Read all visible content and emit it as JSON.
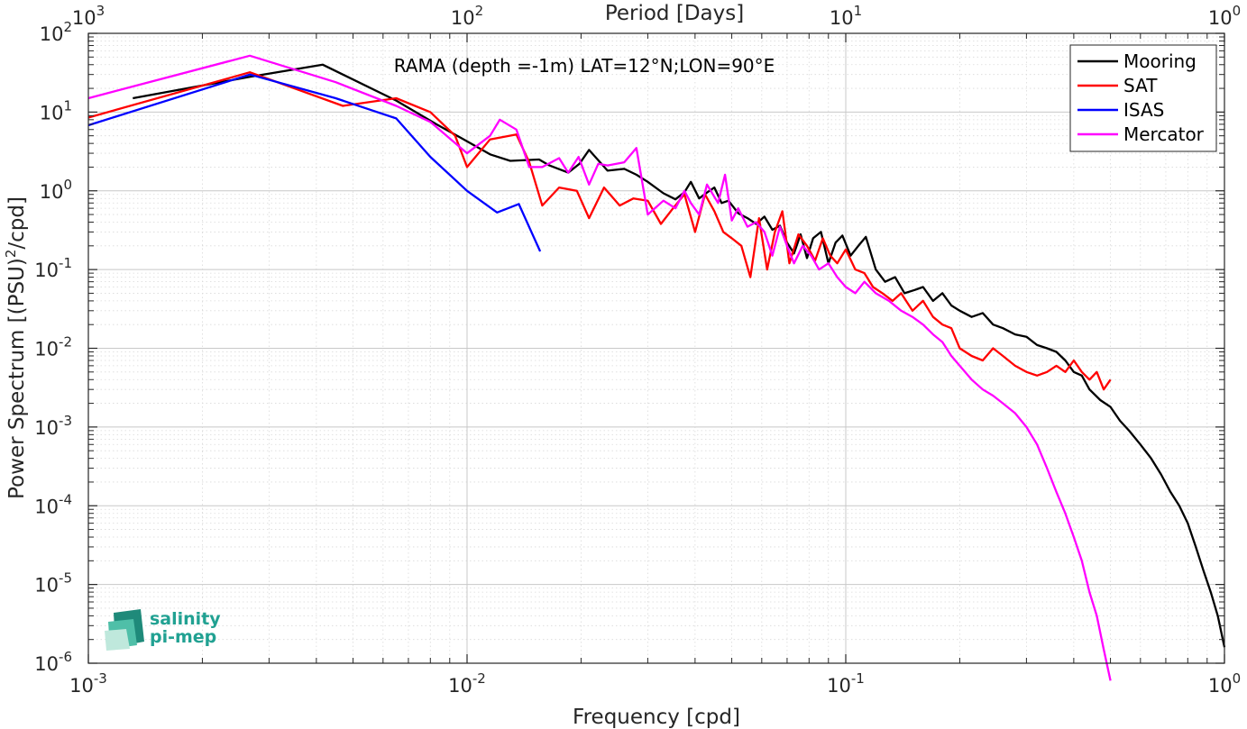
{
  "chart_data": {
    "type": "line",
    "title": "RAMA (depth =-1m) LAT=12°N;LON=90°E",
    "xlabel": "Frequency [cpd]",
    "ylabel": "Power Spectrum [(PSU)²/cpd]",
    "top_xlabel": "Period [Days]",
    "x_scale": "log",
    "y_scale": "log",
    "xlim": [
      0.001,
      1
    ],
    "ylim": [
      1e-06,
      100
    ],
    "grid": true,
    "legend_position": "top-right",
    "x_ticks": [
      {
        "base": "10",
        "exp": "-3",
        "value": 0.001
      },
      {
        "base": "10",
        "exp": "-2",
        "value": 0.01
      },
      {
        "base": "10",
        "exp": "-1",
        "value": 0.1
      },
      {
        "base": "10",
        "exp": "0",
        "value": 1
      }
    ],
    "top_ticks": [
      {
        "base": "10",
        "exp": "3",
        "value": 0.001
      },
      {
        "base": "10",
        "exp": "2",
        "value": 0.01
      },
      {
        "base": "10",
        "exp": "1",
        "value": 0.1
      },
      {
        "base": "10",
        "exp": "0",
        "value": 1
      }
    ],
    "y_ticks": [
      {
        "base": "10",
        "exp": "2",
        "value": 100
      },
      {
        "base": "10",
        "exp": "1",
        "value": 10
      },
      {
        "base": "10",
        "exp": "0",
        "value": 1
      },
      {
        "base": "10",
        "exp": "-1",
        "value": 0.1
      },
      {
        "base": "10",
        "exp": "-2",
        "value": 0.01
      },
      {
        "base": "10",
        "exp": "-3",
        "value": 0.001
      },
      {
        "base": "10",
        "exp": "-4",
        "value": 0.0001
      },
      {
        "base": "10",
        "exp": "-5",
        "value": 1e-05
      },
      {
        "base": "10",
        "exp": "-6",
        "value": 1e-06
      }
    ],
    "series": [
      {
        "name": "Mooring",
        "color": "#000000",
        "x": [
          0.00131,
          0.00267,
          0.00416,
          0.0065,
          0.0083,
          0.0098,
          0.0115,
          0.013,
          0.0155,
          0.0165,
          0.0185,
          0.0198,
          0.021,
          0.0235,
          0.026,
          0.028,
          0.03,
          0.033,
          0.0355,
          0.0375,
          0.039,
          0.041,
          0.043,
          0.045,
          0.047,
          0.049,
          0.052,
          0.055,
          0.058,
          0.061,
          0.064,
          0.067,
          0.07,
          0.073,
          0.076,
          0.079,
          0.082,
          0.086,
          0.09,
          0.094,
          0.098,
          0.103,
          0.108,
          0.113,
          0.12,
          0.127,
          0.135,
          0.143,
          0.152,
          0.16,
          0.17,
          0.18,
          0.19,
          0.2,
          0.215,
          0.23,
          0.245,
          0.26,
          0.28,
          0.3,
          0.32,
          0.34,
          0.36,
          0.38,
          0.4,
          0.42,
          0.44,
          0.47,
          0.5,
          0.53,
          0.56,
          0.6,
          0.64,
          0.68,
          0.72,
          0.76,
          0.8,
          0.84,
          0.88,
          0.92,
          0.96,
          1.0
        ],
        "y": [
          15,
          28,
          40,
          14,
          7,
          4.5,
          2.9,
          2.4,
          2.5,
          2.1,
          1.7,
          2.2,
          3.3,
          1.8,
          1.9,
          1.6,
          1.3,
          0.93,
          0.78,
          0.96,
          1.3,
          0.8,
          0.95,
          1.1,
          0.7,
          0.75,
          0.52,
          0.45,
          0.38,
          0.47,
          0.32,
          0.36,
          0.22,
          0.16,
          0.28,
          0.14,
          0.25,
          0.3,
          0.12,
          0.22,
          0.27,
          0.15,
          0.2,
          0.26,
          0.1,
          0.07,
          0.08,
          0.05,
          0.055,
          0.06,
          0.04,
          0.05,
          0.035,
          0.03,
          0.025,
          0.028,
          0.02,
          0.018,
          0.015,
          0.014,
          0.011,
          0.01,
          0.009,
          0.007,
          0.005,
          0.0045,
          0.003,
          0.0022,
          0.0018,
          0.0012,
          0.0009,
          0.0006,
          0.0004,
          0.00025,
          0.00015,
          0.0001,
          6e-05,
          3e-05,
          1.5e-05,
          8e-06,
          4e-06,
          1.6e-06
        ]
      },
      {
        "name": "SAT",
        "color": "#ff0000",
        "x": [
          0.001,
          0.00267,
          0.0047,
          0.0065,
          0.008,
          0.0093,
          0.01,
          0.0115,
          0.0135,
          0.0146,
          0.0158,
          0.0175,
          0.0195,
          0.021,
          0.023,
          0.0253,
          0.0275,
          0.03,
          0.0325,
          0.035,
          0.0375,
          0.04,
          0.0425,
          0.045,
          0.0475,
          0.05,
          0.053,
          0.056,
          0.059,
          0.062,
          0.065,
          0.068,
          0.071,
          0.075,
          0.079,
          0.083,
          0.087,
          0.091,
          0.095,
          0.1,
          0.106,
          0.112,
          0.118,
          0.125,
          0.133,
          0.14,
          0.15,
          0.16,
          0.17,
          0.18,
          0.19,
          0.2,
          0.215,
          0.23,
          0.245,
          0.26,
          0.28,
          0.3,
          0.32,
          0.34,
          0.36,
          0.38,
          0.4,
          0.42,
          0.44,
          0.46,
          0.48,
          0.5
        ],
        "y": [
          8.5,
          32,
          12,
          15,
          10,
          5,
          2,
          4.5,
          5.2,
          2.3,
          0.65,
          1.1,
          1.0,
          0.45,
          1.1,
          0.65,
          0.8,
          0.75,
          0.38,
          0.6,
          0.9,
          0.3,
          0.9,
          0.55,
          0.3,
          0.25,
          0.2,
          0.08,
          0.45,
          0.1,
          0.3,
          0.55,
          0.12,
          0.28,
          0.2,
          0.13,
          0.25,
          0.15,
          0.12,
          0.18,
          0.1,
          0.09,
          0.06,
          0.05,
          0.04,
          0.05,
          0.03,
          0.04,
          0.025,
          0.02,
          0.018,
          0.01,
          0.008,
          0.007,
          0.01,
          0.008,
          0.006,
          0.005,
          0.0045,
          0.005,
          0.006,
          0.005,
          0.007,
          0.005,
          0.004,
          0.005,
          0.003,
          0.004
        ]
      },
      {
        "name": "ISAS",
        "color": "#0000ff",
        "x": [
          0.001,
          0.00267,
          0.0045,
          0.0065,
          0.008,
          0.01,
          0.012,
          0.0137,
          0.0156
        ],
        "y": [
          6.8,
          30,
          15,
          8.3,
          2.7,
          1.0,
          0.53,
          0.68,
          0.17
        ]
      },
      {
        "name": "Mercator",
        "color": "#ff00ff",
        "x": [
          0.001,
          0.00267,
          0.0045,
          0.0065,
          0.008,
          0.01,
          0.0115,
          0.0122,
          0.0135,
          0.0146,
          0.0158,
          0.0175,
          0.0185,
          0.0197,
          0.021,
          0.0222,
          0.0235,
          0.026,
          0.028,
          0.03,
          0.033,
          0.0355,
          0.0375,
          0.039,
          0.041,
          0.043,
          0.046,
          0.048,
          0.05,
          0.052,
          0.055,
          0.058,
          0.061,
          0.064,
          0.067,
          0.07,
          0.073,
          0.077,
          0.081,
          0.085,
          0.09,
          0.095,
          0.1,
          0.106,
          0.112,
          0.12,
          0.13,
          0.14,
          0.15,
          0.16,
          0.17,
          0.18,
          0.19,
          0.2,
          0.215,
          0.23,
          0.245,
          0.26,
          0.28,
          0.3,
          0.32,
          0.34,
          0.36,
          0.38,
          0.4,
          0.42,
          0.44,
          0.46,
          0.48,
          0.5
        ],
        "y": [
          15,
          52,
          24,
          12,
          7.5,
          3.0,
          5.0,
          8.0,
          6.0,
          2.0,
          2.0,
          2.6,
          1.7,
          2.7,
          1.2,
          2.2,
          2.1,
          2.3,
          3.5,
          0.5,
          0.75,
          0.6,
          1.0,
          0.7,
          0.5,
          1.2,
          0.7,
          1.6,
          0.42,
          0.6,
          0.35,
          0.4,
          0.3,
          0.15,
          0.35,
          0.2,
          0.12,
          0.2,
          0.15,
          0.1,
          0.12,
          0.08,
          0.06,
          0.05,
          0.07,
          0.05,
          0.04,
          0.03,
          0.025,
          0.02,
          0.015,
          0.012,
          0.008,
          0.006,
          0.004,
          0.003,
          0.0025,
          0.002,
          0.0015,
          0.001,
          0.0006,
          0.0003,
          0.00015,
          8e-05,
          4e-05,
          2e-05,
          8e-06,
          4e-06,
          1.5e-06,
          6e-07
        ]
      }
    ]
  },
  "legend": {
    "items": [
      {
        "label": "Mooring",
        "color": "#000000"
      },
      {
        "label": "SAT",
        "color": "#ff0000"
      },
      {
        "label": "ISAS",
        "color": "#0000ff"
      },
      {
        "label": "Mercator",
        "color": "#ff00ff"
      }
    ]
  },
  "logo": {
    "line1": "salinity",
    "line2": "pi-mep",
    "color": "#21a192"
  }
}
